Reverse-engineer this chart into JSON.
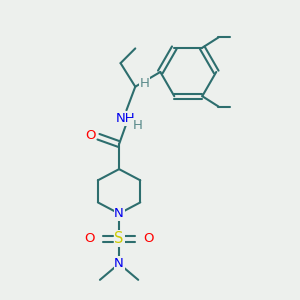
{
  "bg_color": "#edf0ed",
  "bond_color": "#2d6e6e",
  "bond_width": 1.5,
  "atom_colors": {
    "O": "#ff0000",
    "N": "#0000ee",
    "S": "#cccc00",
    "H": "#5a8a8a",
    "C": "#2d6e6e"
  },
  "font_size_atom": 9.5,
  "font_size_small": 8.5
}
